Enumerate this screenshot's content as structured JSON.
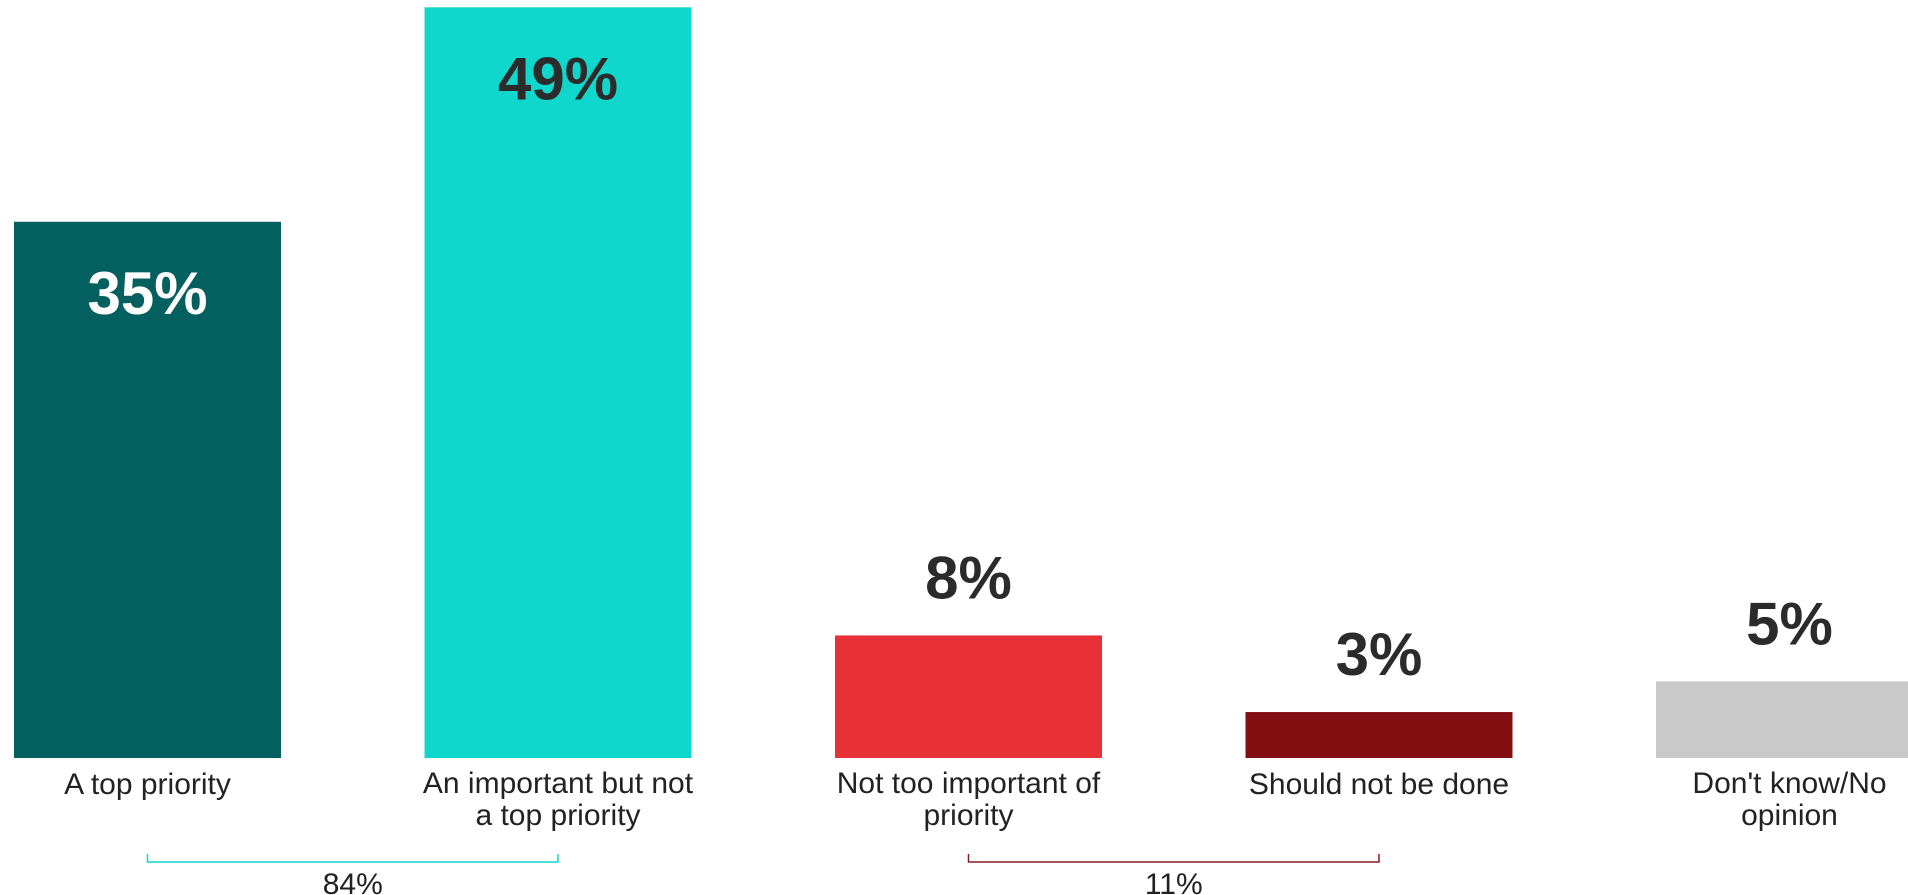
{
  "chart_data": {
    "type": "bar",
    "categories": [
      [
        "A top priority"
      ],
      [
        "An important but not",
        "a top priority"
      ],
      [
        "Not too important of",
        "priority"
      ],
      [
        "Should not be done"
      ],
      [
        "Don't know/No",
        "opinion"
      ]
    ],
    "values": [
      35,
      49,
      8,
      3,
      5
    ],
    "value_labels": [
      "35%",
      "49%",
      "8%",
      "3%",
      "5%"
    ],
    "colors": [
      "#04605e",
      "#10d7cc",
      "#e83136",
      "#830f13",
      "#c9c9c9"
    ],
    "value_label_colors": [
      "#ffffff",
      "#2b2b2b",
      "#2b2b2b",
      "#2b2b2b",
      "#2b2b2b"
    ],
    "value_label_position": [
      "inside",
      "inside",
      "above",
      "above",
      "above"
    ],
    "groups": [
      {
        "label": "84%",
        "from": 0,
        "to": 1,
        "color": "#10d7cc"
      },
      {
        "label": "11%",
        "from": 2,
        "to": 3,
        "color": "#8b1a1e"
      }
    ],
    "title": "",
    "xlabel": "",
    "ylabel": "",
    "grid": false
  }
}
